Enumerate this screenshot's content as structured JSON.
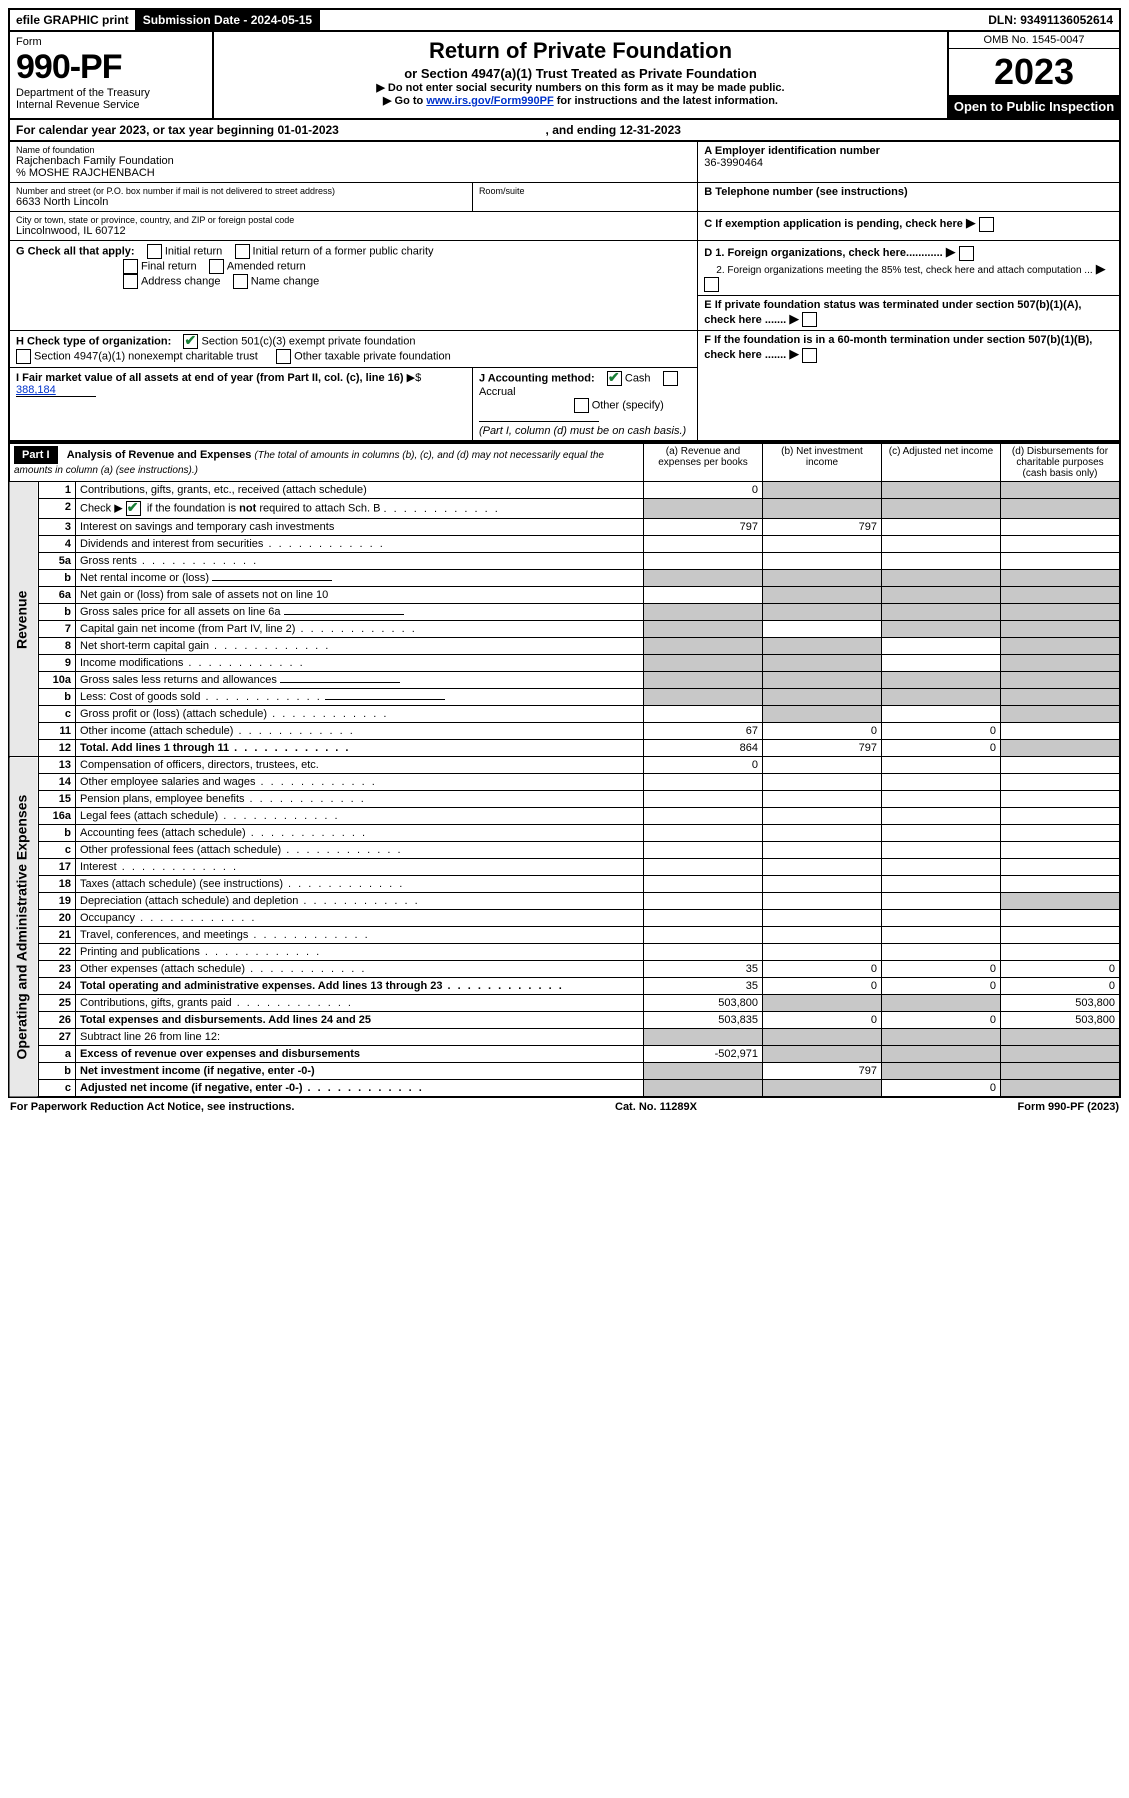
{
  "top": {
    "efile": "efile GRAPHIC print",
    "sub_label": "Submission Date - 2024-05-15",
    "dln": "DLN: 93491136052614"
  },
  "header": {
    "form": "Form",
    "number": "990-PF",
    "dept": "Department of the Treasury",
    "irs": "Internal Revenue Service",
    "title": "Return of Private Foundation",
    "subtitle": "or Section 4947(a)(1) Trust Treated as Private Foundation",
    "note1": "▶ Do not enter social security numbers on this form as it may be made public.",
    "note2_pre": "▶ Go to ",
    "note2_link": "www.irs.gov/Form990PF",
    "note2_post": " for instructions and the latest information.",
    "omb": "OMB No. 1545-0047",
    "year": "2023",
    "open": "Open to Public Inspection"
  },
  "calendar": {
    "text_pre": "For calendar year 2023, or tax year beginning ",
    "begin": "01-01-2023",
    "mid": " , and ending ",
    "end": "12-31-2023"
  },
  "entity": {
    "name_lbl": "Name of foundation",
    "name": "Rajchenbach Family Foundation",
    "care_of": "% MOSHE RAJCHENBACH",
    "addr_lbl": "Number and street (or P.O. box number if mail is not delivered to street address)",
    "addr": "6633 North Lincoln",
    "room_lbl": "Room/suite",
    "city_lbl": "City or town, state or province, country, and ZIP or foreign postal code",
    "city": "Lincolnwood, IL  60712",
    "a_lbl": "A Employer identification number",
    "a_val": "36-3990464",
    "b_lbl": "B Telephone number (see instructions)",
    "c_lbl": "C If exemption application is pending, check here",
    "d1_lbl": "D 1. Foreign organizations, check here............",
    "d2_lbl": "2. Foreign organizations meeting the 85% test, check here and attach computation ...",
    "e_lbl": "E  If private foundation status was terminated under section 507(b)(1)(A), check here .......",
    "f_lbl": "F  If the foundation is in a 60-month termination under section 507(b)(1)(B), check here .......",
    "g_lbl": "G Check all that apply:",
    "g_opts": [
      "Initial return",
      "Initial return of a former public charity",
      "Final return",
      "Amended return",
      "Address change",
      "Name change"
    ],
    "h_lbl": "H Check type of organization:",
    "h1": "Section 501(c)(3) exempt private foundation",
    "h2": "Section 4947(a)(1) nonexempt charitable trust",
    "h3": "Other taxable private foundation",
    "i_lbl": "I Fair market value of all assets at end of year (from Part II, col. (c), line 16)",
    "i_arrow": "▶$",
    "i_val": "388,184",
    "j_lbl": "J Accounting method:",
    "j_cash": "Cash",
    "j_accrual": "Accrual",
    "j_other": "Other (specify)",
    "j_note": "(Part I, column (d) must be on cash basis.)"
  },
  "part1": {
    "label": "Part I",
    "title": "Analysis of Revenue and Expenses",
    "title_note": "(The total of amounts in columns (b), (c), and (d) may not necessarily equal the amounts in column (a) (see instructions).)",
    "col_a": "(a)  Revenue and expenses per books",
    "col_b": "(b)  Net investment income",
    "col_c": "(c)  Adjusted net income",
    "col_d": "(d)  Disbursements for charitable purposes (cash basis only)"
  },
  "sections": {
    "revenue": "Revenue",
    "expenses": "Operating and Administrative Expenses"
  },
  "rows": [
    {
      "n": "1",
      "d": "Contributions, gifts, grants, etc., received (attach schedule)",
      "a": "0",
      "shade": [
        "b",
        "c",
        "d"
      ]
    },
    {
      "n": "2",
      "d": "Check ▶ ☑ if the foundation is not required to attach Sch. B",
      "dots": true,
      "shade": [
        "a",
        "b",
        "c",
        "d"
      ]
    },
    {
      "n": "3",
      "d": "Interest on savings and temporary cash investments",
      "a": "797",
      "b": "797"
    },
    {
      "n": "4",
      "d": "Dividends and interest from securities",
      "dots": true
    },
    {
      "n": "5a",
      "d": "Gross rents",
      "dots": true
    },
    {
      "n": "b",
      "d": "Net rental income or (loss)",
      "uline": true,
      "shade": [
        "a",
        "b",
        "c",
        "d"
      ]
    },
    {
      "n": "6a",
      "d": "Net gain or (loss) from sale of assets not on line 10",
      "shade": [
        "b",
        "c",
        "d"
      ]
    },
    {
      "n": "b",
      "d": "Gross sales price for all assets on line 6a",
      "uline": true,
      "shade": [
        "a",
        "b",
        "c",
        "d"
      ]
    },
    {
      "n": "7",
      "d": "Capital gain net income (from Part IV, line 2)",
      "dots": true,
      "shade": [
        "a",
        "c",
        "d"
      ]
    },
    {
      "n": "8",
      "d": "Net short-term capital gain",
      "dots": true,
      "shade": [
        "a",
        "b",
        "d"
      ]
    },
    {
      "n": "9",
      "d": "Income modifications",
      "dots": true,
      "shade": [
        "a",
        "b",
        "d"
      ]
    },
    {
      "n": "10a",
      "d": "Gross sales less returns and allowances",
      "uline": true,
      "shade": [
        "a",
        "b",
        "c",
        "d"
      ]
    },
    {
      "n": "b",
      "d": "Less: Cost of goods sold",
      "dots": true,
      "uline": true,
      "shade": [
        "a",
        "b",
        "c",
        "d"
      ]
    },
    {
      "n": "c",
      "d": "Gross profit or (loss) (attach schedule)",
      "dots": true,
      "shade": [
        "b",
        "d"
      ]
    },
    {
      "n": "11",
      "d": "Other income (attach schedule)",
      "dots": true,
      "a": "67",
      "b": "0",
      "c": "0"
    },
    {
      "n": "12",
      "d": "Total. Add lines 1 through 11",
      "dots": true,
      "bold": true,
      "a": "864",
      "b": "797",
      "c": "0",
      "shade": [
        "d"
      ]
    },
    {
      "n": "13",
      "d": "Compensation of officers, directors, trustees, etc.",
      "a": "0"
    },
    {
      "n": "14",
      "d": "Other employee salaries and wages",
      "dots": true
    },
    {
      "n": "15",
      "d": "Pension plans, employee benefits",
      "dots": true
    },
    {
      "n": "16a",
      "d": "Legal fees (attach schedule)",
      "dots": true
    },
    {
      "n": "b",
      "d": "Accounting fees (attach schedule)",
      "dots": true
    },
    {
      "n": "c",
      "d": "Other professional fees (attach schedule)",
      "dots": true
    },
    {
      "n": "17",
      "d": "Interest",
      "dots": true
    },
    {
      "n": "18",
      "d": "Taxes (attach schedule) (see instructions)",
      "dots": true
    },
    {
      "n": "19",
      "d": "Depreciation (attach schedule) and depletion",
      "dots": true,
      "shade": [
        "d"
      ]
    },
    {
      "n": "20",
      "d": "Occupancy",
      "dots": true
    },
    {
      "n": "21",
      "d": "Travel, conferences, and meetings",
      "dots": true
    },
    {
      "n": "22",
      "d": "Printing and publications",
      "dots": true
    },
    {
      "n": "23",
      "d": "Other expenses (attach schedule)",
      "dots": true,
      "a": "35",
      "b": "0",
      "c": "0",
      "dd": "0"
    },
    {
      "n": "24",
      "d": "Total operating and administrative expenses. Add lines 13 through 23",
      "dots": true,
      "bold": true,
      "a": "35",
      "b": "0",
      "c": "0",
      "dd": "0"
    },
    {
      "n": "25",
      "d": "Contributions, gifts, grants paid",
      "dots": true,
      "a": "503,800",
      "dd": "503,800",
      "shade": [
        "b",
        "c"
      ]
    },
    {
      "n": "26",
      "d": "Total expenses and disbursements. Add lines 24 and 25",
      "bold": true,
      "a": "503,835",
      "b": "0",
      "c": "0",
      "dd": "503,800"
    },
    {
      "n": "27",
      "d": "Subtract line 26 from line 12:",
      "shade": [
        "a",
        "b",
        "c",
        "d"
      ]
    },
    {
      "n": "a",
      "d": "Excess of revenue over expenses and disbursements",
      "bold": true,
      "a": "-502,971",
      "shade": [
        "b",
        "c",
        "d"
      ]
    },
    {
      "n": "b",
      "d": "Net investment income (if negative, enter -0-)",
      "bold": true,
      "b": "797",
      "shade": [
        "a",
        "c",
        "d"
      ]
    },
    {
      "n": "c",
      "d": "Adjusted net income (if negative, enter -0-)",
      "dots": true,
      "bold": true,
      "c": "0",
      "shade": [
        "a",
        "b",
        "d"
      ]
    }
  ],
  "footer": {
    "left": "For Paperwork Reduction Act Notice, see instructions.",
    "mid": "Cat. No. 11289X",
    "right": "Form 990-PF (2023)"
  },
  "check2_note": "not"
}
